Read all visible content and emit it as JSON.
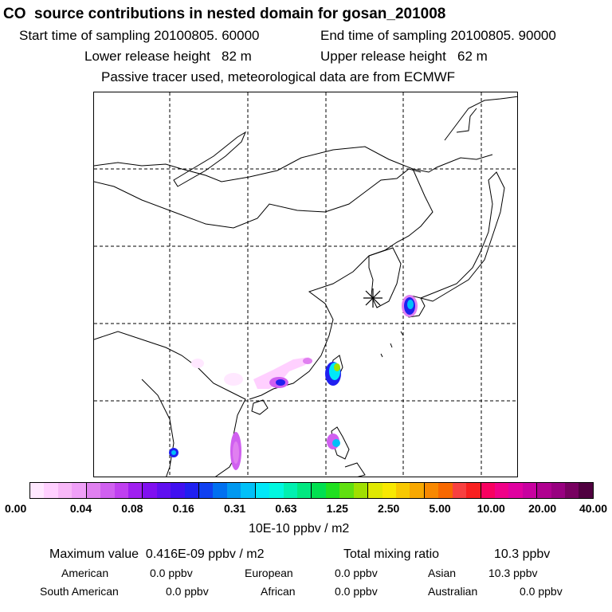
{
  "header": {
    "title": "CO  source contributions in nested domain for gosan_201008",
    "start_time": "Start time of sampling 20100805. 60000",
    "end_time": "End time of sampling 20100805. 90000",
    "lower_height": "Lower release height   82 m",
    "upper_height": "Upper release height   62 m",
    "tracer_note": "Passive tracer used, meteorological data are from ECMWF"
  },
  "colorbar": {
    "colors": [
      "#ffe8ff",
      "#ffd0ff",
      "#f8b8f8",
      "#f0a0f8",
      "#e080f0",
      "#d060f0",
      "#c040f0",
      "#a020f0",
      "#8010f0",
      "#6010f0",
      "#4010f0",
      "#2020f0",
      "#1040f0",
      "#0070f0",
      "#0098f0",
      "#00c0f8",
      "#00e8f8",
      "#00f8e0",
      "#00f0b0",
      "#00e880",
      "#00e050",
      "#20e020",
      "#60e010",
      "#a0e000",
      "#e0e800",
      "#f8e800",
      "#f8c800",
      "#f8a800",
      "#f88800",
      "#f86800",
      "#f84040",
      "#f82020",
      "#f80060",
      "#f00088",
      "#e000a0",
      "#c800a0",
      "#b00090",
      "#980080",
      "#780060",
      "#500040"
    ],
    "ticks": [
      "0.00",
      "0.04",
      "0.08",
      "0.16",
      "0.31",
      "0.63",
      "1.25",
      "2.50",
      "5.00",
      "10.00",
      "20.00",
      "40.00"
    ],
    "unit": "10E-10 ppbv / m2"
  },
  "summary": {
    "max_label": "Maximum value  0.416E-09 ppbv / m2",
    "total_label": "Total mixing ratio",
    "total_value": "10.3 ppbv",
    "regions": [
      {
        "name": "American",
        "value": "0.0 ppbv"
      },
      {
        "name": "European",
        "value": "0.0 ppbv"
      },
      {
        "name": "Asian",
        "value": "10.3 ppbv"
      },
      {
        "name": "South American",
        "value": "0.0 ppbv"
      },
      {
        "name": "African",
        "value": "0.0 ppbv"
      },
      {
        "name": "Australian",
        "value": "0.0 ppbv"
      }
    ]
  },
  "map": {
    "receptor_icon": "asterisk-icon",
    "grid_line_color": "#000000"
  }
}
